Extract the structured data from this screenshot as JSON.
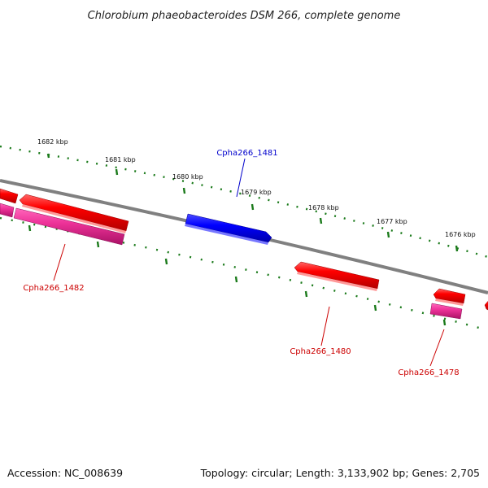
{
  "title": "Chlorobium phaeobacteroides DSM 266, complete genome",
  "footer": {
    "accession": "Accession: NC_008639",
    "summary": "Topology: circular; Length: 3,133,902 bp; Genes: 2,705"
  },
  "ticks": [
    {
      "label": "1682 kbp"
    },
    {
      "label": "1681 kbp"
    },
    {
      "label": "1680 kbp"
    },
    {
      "label": "1679 kbp"
    },
    {
      "label": "1678 kbp"
    },
    {
      "label": "1677 kbp"
    },
    {
      "label": "1676 kbp"
    }
  ],
  "gene_labels": [
    {
      "name": "Cpha266_1481",
      "color": "#0000cc"
    },
    {
      "name": "Cpha266_1482",
      "color": "#cc0000"
    },
    {
      "name": "Cpha266_1480",
      "color": "#cc0000"
    },
    {
      "name": "Cpha266_1478",
      "color": "#cc0000"
    }
  ],
  "colors": {
    "backbone": "#808080",
    "tick": "#1a7a1a",
    "gene_forward": "#0000ff",
    "gene_reverse": "#ff0000",
    "gene_pink": "#ee3399"
  }
}
